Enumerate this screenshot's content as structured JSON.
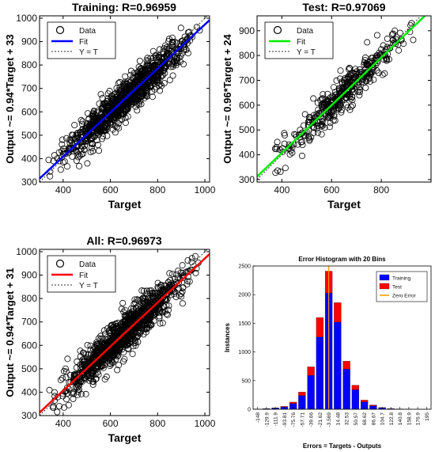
{
  "chart_data": [
    {
      "type": "scatter",
      "title": "Training: R=0.96959",
      "xlabel": "Target",
      "ylabel": "Output ~= 0.94*Target + 33",
      "xlim": [
        300,
        1020
      ],
      "ylim": [
        300,
        1010
      ],
      "xticks": [
        400,
        600,
        800,
        1000
      ],
      "yticks": [
        300,
        400,
        500,
        600,
        700,
        800,
        900,
        1000
      ],
      "fit": {
        "slope": 0.94,
        "intercept": 33,
        "color": "#0000ff"
      },
      "grid": false,
      "legend_position": "top-left",
      "legend": [
        "Data",
        "Fit",
        "Y = T"
      ],
      "scatter_points": 1100,
      "scatter_spread": 38,
      "x_range": [
        305,
        1015
      ]
    },
    {
      "type": "scatter",
      "title": "Test: R=0.97069",
      "xlabel": "Target",
      "ylabel": "Output ~= 0.96*Target + 24",
      "xlim": [
        300,
        1000
      ],
      "ylim": [
        290,
        960
      ],
      "xticks": [
        400,
        600,
        800
      ],
      "yticks": [
        300,
        400,
        500,
        600,
        700,
        800,
        900
      ],
      "fit": {
        "slope": 0.96,
        "intercept": 24,
        "color": "#00ee00"
      },
      "grid": false,
      "legend_position": "top-left",
      "legend": [
        "Data",
        "Fit",
        "Y = T"
      ],
      "scatter_points": 420,
      "scatter_spread": 34,
      "x_range": [
        305,
        990
      ]
    },
    {
      "type": "scatter",
      "title": "All: R=0.96973",
      "xlabel": "Target",
      "ylabel": "Output ~= 0.94*Target + 31",
      "xlim": [
        300,
        1020
      ],
      "ylim": [
        300,
        1010
      ],
      "xticks": [
        400,
        600,
        800,
        1000
      ],
      "yticks": [
        300,
        400,
        500,
        600,
        700,
        800,
        900,
        1000
      ],
      "fit": {
        "slope": 0.94,
        "intercept": 31,
        "color": "#ff0000"
      },
      "grid": false,
      "legend_position": "top-left",
      "legend": [
        "Data",
        "Fit",
        "Y = T"
      ],
      "scatter_points": 1250,
      "scatter_spread": 38,
      "x_range": [
        305,
        1015
      ]
    },
    {
      "type": "bar",
      "title": "Error Histogram with 20 Bins",
      "xlabel": "Errors = Targets - Outputs",
      "ylabel": "Instances",
      "categories": [
        "-148",
        "-129.9",
        "-111.9",
        "-93.81",
        "-75.76",
        "-57.71",
        "-39.66",
        "-21.62",
        "-3.569",
        "14.48",
        "32.53",
        "50.57",
        "68.62",
        "86.67",
        "104.7",
        "122.8",
        "140.8",
        "158.9",
        "176.9",
        "195"
      ],
      "ylim": [
        0,
        2500
      ],
      "yticks": [
        0,
        500,
        1000,
        1500,
        2000,
        2500
      ],
      "stacked": true,
      "series": [
        {
          "name": "Training",
          "color": "#0000ff",
          "values": [
            3,
            8,
            20,
            40,
            100,
            240,
            590,
            1260,
            2030,
            1520,
            700,
            340,
            130,
            60,
            25,
            10,
            5,
            3,
            2,
            1
          ]
        },
        {
          "name": "Test",
          "color": "#ff0000",
          "values": [
            1,
            2,
            5,
            10,
            25,
            60,
            150,
            340,
            380,
            340,
            140,
            80,
            30,
            15,
            5,
            2,
            1,
            1,
            0,
            0
          ]
        }
      ],
      "zero_error": {
        "name": "Zero Error",
        "color": "#ff9900",
        "category_index": 8
      },
      "legend_position": "top-right",
      "grid": false
    }
  ]
}
